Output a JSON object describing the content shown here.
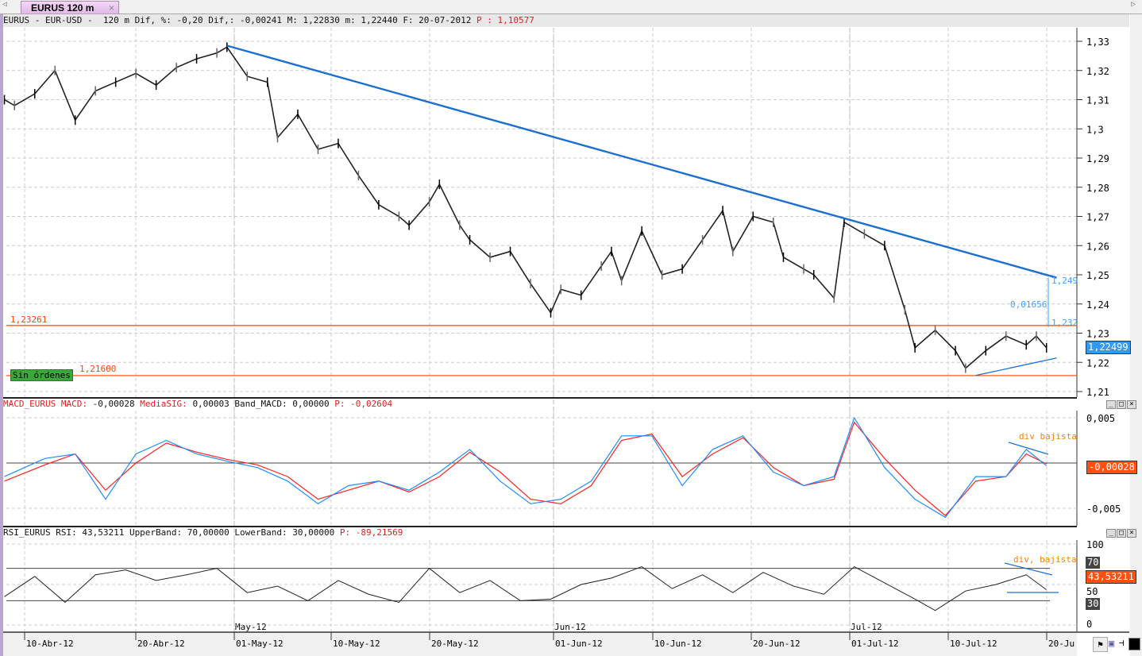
{
  "tab": {
    "label": "EURUS 120 m",
    "close": "×"
  },
  "main_header": {
    "text": "EURUS - EUR-USD -  120 m Dif, %: -0,20 Dif,: -0,00241 M: 1,22830 m: 1,22440 F: 20-07-2012 ",
    "p": "P : 1,10577"
  },
  "macd_header": {
    "name": "MACD_EURUS MACD: ",
    "macd": "-0,00028 ",
    "sig_label": "MediaSIG: ",
    "rest": "0,00003 Band_MACD: 0,00000 ",
    "p": "P: -0,02604"
  },
  "rsi_header": {
    "text": "RSI_EURUS RSI: 43,53211 UpperBand: 70,00000 LowerBand: 30,00000 ",
    "p": "P: -89,21569"
  },
  "annotations": {
    "level_high": "1,23261",
    "level_low": "1,21600",
    "sin_ordenes": "Sin órdenes",
    "measure": "0,01656",
    "measure_top": "1,249",
    "measure_bottom": "1,232",
    "macd_note": "div bajista",
    "rsi_note": "div, bajista",
    "current_price": "1,22499",
    "current_macd": "-0,00028",
    "current_rsi": "43,53211",
    "rsi_70": "70",
    "rsi_30": "30"
  },
  "colors": {
    "trendline": "#1a6fd0",
    "level": "#ff4000",
    "macd": "#1e8cff",
    "signal": "#ff2020",
    "label_bg": "#ff5010",
    "sin_ordenes_bg": "#3aa83a"
  },
  "chart_data": [
    {
      "type": "line",
      "title": "EURUS - EUR-USD - 120 m",
      "ylim": [
        1.21,
        1.33
      ],
      "yticks": [
        "1,21",
        "1,22",
        "1,23",
        "1,24",
        "1,25",
        "1,26",
        "1,27",
        "1,28",
        "1,29",
        "1,3",
        "1,31",
        "1,32",
        "1,33"
      ],
      "x": [
        "2012-04-08",
        "2012-04-09",
        "2012-04-11",
        "2012-04-13",
        "2012-04-15",
        "2012-04-17",
        "2012-04-19",
        "2012-04-21",
        "2012-04-23",
        "2012-04-25",
        "2012-04-27",
        "2012-04-29",
        "2012-04-30",
        "2012-05-02",
        "2012-05-04",
        "2012-05-05",
        "2012-05-07",
        "2012-05-09",
        "2012-05-11",
        "2012-05-13",
        "2012-05-15",
        "2012-05-17",
        "2012-05-18",
        "2012-05-20",
        "2012-05-21",
        "2012-05-23",
        "2012-05-24",
        "2012-05-26",
        "2012-05-28",
        "2012-05-30",
        "2012-06-01",
        "2012-06-02",
        "2012-06-04",
        "2012-06-06",
        "2012-06-07",
        "2012-06-08",
        "2012-06-10",
        "2012-06-12",
        "2012-06-14",
        "2012-06-16",
        "2012-06-18",
        "2012-06-19",
        "2012-06-21",
        "2012-06-23",
        "2012-06-24",
        "2012-06-26",
        "2012-06-27",
        "2012-06-29",
        "2012-06-30",
        "2012-07-02",
        "2012-07-04",
        "2012-07-06",
        "2012-07-07",
        "2012-07-09",
        "2012-07-11",
        "2012-07-12",
        "2012-07-14",
        "2012-07-16",
        "2012-07-18",
        "2012-07-19",
        "2012-07-20"
      ],
      "values": [
        1.31,
        1.308,
        1.312,
        1.32,
        1.303,
        1.313,
        1.316,
        1.319,
        1.315,
        1.321,
        1.324,
        1.326,
        1.328,
        1.318,
        1.316,
        1.297,
        1.305,
        1.293,
        1.295,
        1.284,
        1.274,
        1.27,
        1.267,
        1.275,
        1.281,
        1.267,
        1.262,
        1.256,
        1.258,
        1.247,
        1.237,
        1.245,
        1.243,
        1.253,
        1.258,
        1.248,
        1.265,
        1.25,
        1.252,
        1.262,
        1.272,
        1.258,
        1.27,
        1.268,
        1.256,
        1.252,
        1.25,
        1.242,
        1.268,
        1.264,
        1.26,
        1.238,
        1.225,
        1.231,
        1.224,
        1.218,
        1.224,
        1.229,
        1.226,
        1.229,
        1.225
      ],
      "lines": [
        {
          "from": [
            "2012-04-30",
            1.3285
          ],
          "to": [
            "2012-07-21",
            1.249
          ]
        },
        {
          "from": [
            "2012-07-13",
            1.2155
          ],
          "to": [
            "2012-07-21",
            1.2215
          ]
        }
      ],
      "levels": [
        1.23261,
        1.216
      ],
      "xticks": [
        "10-Abr-12",
        "20-Abr-12",
        "01-May-12",
        "10-May-12",
        "20-May-12",
        "01-Jun-12",
        "10-Jun-12",
        "20-Jun-12",
        "01-Jul-12",
        "10-Jul-12",
        "20-Ju"
      ],
      "month_labels": [
        "May-12",
        "Jun-12",
        "Jul-12"
      ]
    },
    {
      "type": "line",
      "title": "MACD_EURUS",
      "ylim": [
        -0.0075,
        0.0065
      ],
      "yticks": [
        "0,005",
        "-0,005"
      ],
      "x": [
        "2012-04-08",
        "2012-04-12",
        "2012-04-15",
        "2012-04-18",
        "2012-04-21",
        "2012-04-24",
        "2012-04-27",
        "2012-04-30",
        "2012-05-03",
        "2012-05-06",
        "2012-05-09",
        "2012-05-12",
        "2012-05-15",
        "2012-05-18",
        "2012-05-21",
        "2012-05-24",
        "2012-05-27",
        "2012-05-30",
        "2012-06-02",
        "2012-06-05",
        "2012-06-08",
        "2012-06-11",
        "2012-06-14",
        "2012-06-17",
        "2012-06-20",
        "2012-06-23",
        "2012-06-26",
        "2012-06-29",
        "2012-07-01",
        "2012-07-04",
        "2012-07-07",
        "2012-07-10",
        "2012-07-13",
        "2012-07-16",
        "2012-07-18",
        "2012-07-20"
      ],
      "series": [
        {
          "name": "MACD",
          "values": [
            -0.0015,
            0.0005,
            0.001,
            -0.004,
            0.001,
            0.0025,
            0.001,
            0.0002,
            -0.0005,
            -0.002,
            -0.0045,
            -0.0025,
            -0.002,
            -0.003,
            -0.001,
            0.0015,
            -0.002,
            -0.0045,
            -0.004,
            -0.002,
            0.003,
            0.003,
            -0.0025,
            0.0015,
            0.003,
            -0.001,
            -0.0025,
            -0.0015,
            0.005,
            -0.0005,
            -0.004,
            -0.006,
            -0.0015,
            -0.0015,
            0.0015,
            -0.0003
          ]
        },
        {
          "name": "MediaSIG",
          "values": [
            -0.002,
            -0.0002,
            0.001,
            -0.003,
            0.0,
            0.0022,
            0.0012,
            0.0004,
            -0.0002,
            -0.0015,
            -0.004,
            -0.003,
            -0.002,
            -0.0032,
            -0.0015,
            0.0012,
            -0.001,
            -0.004,
            -0.0045,
            -0.0025,
            0.0025,
            0.0032,
            -0.0015,
            0.001,
            0.0028,
            -0.0005,
            -0.0025,
            -0.0018,
            0.0045,
            0.0005,
            -0.003,
            -0.0058,
            -0.002,
            -0.0015,
            0.001,
            -0.0001
          ]
        }
      ]
    },
    {
      "type": "line",
      "title": "RSI_EURUS",
      "ylim": [
        0,
        100
      ],
      "yticks": [
        "100",
        "50",
        "0"
      ],
      "bands": [
        70,
        30
      ],
      "x": [
        "2012-04-08",
        "2012-04-11",
        "2012-04-14",
        "2012-04-17",
        "2012-04-20",
        "2012-04-23",
        "2012-04-26",
        "2012-04-29",
        "2012-05-02",
        "2012-05-05",
        "2012-05-08",
        "2012-05-11",
        "2012-05-14",
        "2012-05-17",
        "2012-05-20",
        "2012-05-23",
        "2012-05-26",
        "2012-05-29",
        "2012-06-01",
        "2012-06-04",
        "2012-06-07",
        "2012-06-10",
        "2012-06-13",
        "2012-06-16",
        "2012-06-19",
        "2012-06-22",
        "2012-06-25",
        "2012-06-28",
        "2012-07-01",
        "2012-07-04",
        "2012-07-07",
        "2012-07-09",
        "2012-07-12",
        "2012-07-15",
        "2012-07-18",
        "2012-07-20"
      ],
      "values": [
        35,
        60,
        28,
        62,
        68,
        55,
        62,
        70,
        40,
        48,
        30,
        55,
        38,
        28,
        70,
        40,
        55,
        30,
        32,
        50,
        58,
        72,
        45,
        62,
        40,
        65,
        48,
        38,
        72,
        52,
        32,
        18,
        42,
        50,
        62,
        43.5
      ]
    }
  ]
}
